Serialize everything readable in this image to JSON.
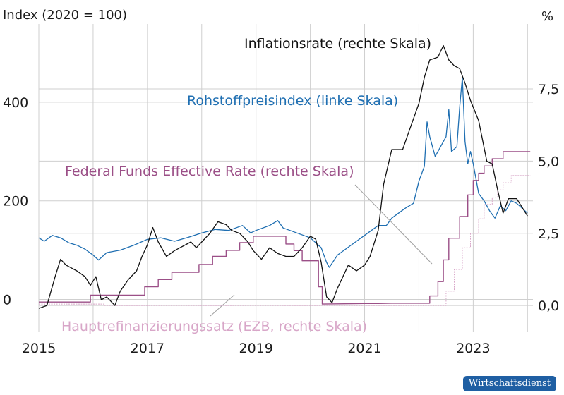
{
  "chart_data": {
    "type": "line",
    "left_axis_title": "Index (2020 = 100)",
    "right_axis_title": "%",
    "left_ylim": [
      -65,
      550
    ],
    "left_ticks": [
      "0",
      "200",
      "400"
    ],
    "right_ylim": [
      -0.9,
      9.6
    ],
    "right_ticks": [
      "0,0",
      "2,5",
      "5,0",
      "7,5"
    ],
    "xlim": [
      2015.0,
      2024.1
    ],
    "x_ticks": [
      "2015",
      "2017",
      "2019",
      "2021",
      "2023"
    ],
    "grid": "vertical yearly and horizontal gridlines",
    "colors": {
      "commodity": "#1f6fb2",
      "inflation": "#111111",
      "fedfunds": "#9b4f87",
      "ecb": "#d8a6c8",
      "grid": "#cfcfcf",
      "leader": "#a0a0a0"
    },
    "annotations": {
      "inflation": "Inflationsrate (rechte Skala)",
      "commodity": "Rohstoffpreisindex (linke Skala)",
      "fedfunds": "Federal Funds Effective Rate (rechte Skala)",
      "ecb": "Hauptrefinanzierungssatz (EZB, rechte Skala)"
    },
    "series": [
      {
        "id": "commodity",
        "axis": "left",
        "points": [
          [
            2015.0,
            125
          ],
          [
            2015.1,
            118
          ],
          [
            2015.25,
            130
          ],
          [
            2015.4,
            125
          ],
          [
            2015.55,
            115
          ],
          [
            2015.7,
            110
          ],
          [
            2015.85,
            102
          ],
          [
            2016.0,
            90
          ],
          [
            2016.1,
            80
          ],
          [
            2016.25,
            95
          ],
          [
            2016.5,
            100
          ],
          [
            2016.75,
            110
          ],
          [
            2017.0,
            122
          ],
          [
            2017.25,
            125
          ],
          [
            2017.5,
            118
          ],
          [
            2017.75,
            126
          ],
          [
            2018.0,
            135
          ],
          [
            2018.25,
            142
          ],
          [
            2018.5,
            140
          ],
          [
            2018.75,
            150
          ],
          [
            2018.9,
            135
          ],
          [
            2019.0,
            140
          ],
          [
            2019.25,
            150
          ],
          [
            2019.4,
            160
          ],
          [
            2019.5,
            145
          ],
          [
            2019.75,
            135
          ],
          [
            2020.0,
            125
          ],
          [
            2020.1,
            115
          ],
          [
            2020.2,
            105
          ],
          [
            2020.3,
            75
          ],
          [
            2020.35,
            65
          ],
          [
            2020.5,
            90
          ],
          [
            2020.75,
            110
          ],
          [
            2021.0,
            130
          ],
          [
            2021.25,
            150
          ],
          [
            2021.4,
            150
          ],
          [
            2021.5,
            165
          ],
          [
            2021.75,
            185
          ],
          [
            2021.9,
            195
          ],
          [
            2022.0,
            240
          ],
          [
            2022.1,
            270
          ],
          [
            2022.15,
            360
          ],
          [
            2022.2,
            330
          ],
          [
            2022.3,
            290
          ],
          [
            2022.4,
            310
          ],
          [
            2022.5,
            330
          ],
          [
            2022.55,
            385
          ],
          [
            2022.6,
            300
          ],
          [
            2022.7,
            310
          ],
          [
            2022.75,
            390
          ],
          [
            2022.8,
            450
          ],
          [
            2022.85,
            320
          ],
          [
            2022.9,
            275
          ],
          [
            2022.95,
            300
          ],
          [
            2023.0,
            275
          ],
          [
            2023.1,
            215
          ],
          [
            2023.2,
            200
          ],
          [
            2023.3,
            180
          ],
          [
            2023.4,
            165
          ],
          [
            2023.5,
            190
          ],
          [
            2023.6,
            180
          ],
          [
            2023.7,
            200
          ],
          [
            2023.8,
            195
          ],
          [
            2023.9,
            185
          ],
          [
            2024.0,
            175
          ]
        ]
      },
      {
        "id": "inflation",
        "axis": "right",
        "points": [
          [
            2015.0,
            -0.1
          ],
          [
            2015.15,
            0.0
          ],
          [
            2015.3,
            1.0
          ],
          [
            2015.4,
            1.6
          ],
          [
            2015.5,
            1.4
          ],
          [
            2015.7,
            1.2
          ],
          [
            2015.85,
            1.0
          ],
          [
            2015.95,
            0.7
          ],
          [
            2016.05,
            1.0
          ],
          [
            2016.15,
            0.2
          ],
          [
            2016.25,
            0.3
          ],
          [
            2016.4,
            0.0
          ],
          [
            2016.5,
            0.5
          ],
          [
            2016.65,
            0.9
          ],
          [
            2016.8,
            1.2
          ],
          [
            2016.9,
            1.7
          ],
          [
            2017.0,
            2.1
          ],
          [
            2017.1,
            2.7
          ],
          [
            2017.2,
            2.2
          ],
          [
            2017.35,
            1.7
          ],
          [
            2017.5,
            1.9
          ],
          [
            2017.6,
            2.0
          ],
          [
            2017.8,
            2.2
          ],
          [
            2017.9,
            2.0
          ],
          [
            2018.0,
            2.2
          ],
          [
            2018.15,
            2.5
          ],
          [
            2018.3,
            2.9
          ],
          [
            2018.45,
            2.8
          ],
          [
            2018.55,
            2.6
          ],
          [
            2018.7,
            2.5
          ],
          [
            2018.85,
            2.2
          ],
          [
            2018.95,
            1.9
          ],
          [
            2019.1,
            1.6
          ],
          [
            2019.25,
            2.0
          ],
          [
            2019.4,
            1.8
          ],
          [
            2019.55,
            1.7
          ],
          [
            2019.7,
            1.7
          ],
          [
            2019.85,
            2.0
          ],
          [
            2020.0,
            2.4
          ],
          [
            2020.1,
            2.3
          ],
          [
            2020.2,
            1.5
          ],
          [
            2020.3,
            0.3
          ],
          [
            2020.4,
            0.1
          ],
          [
            2020.5,
            0.6
          ],
          [
            2020.6,
            1.0
          ],
          [
            2020.7,
            1.4
          ],
          [
            2020.85,
            1.2
          ],
          [
            2021.0,
            1.4
          ],
          [
            2021.1,
            1.7
          ],
          [
            2021.25,
            2.6
          ],
          [
            2021.35,
            4.2
          ],
          [
            2021.5,
            5.4
          ],
          [
            2021.7,
            5.4
          ],
          [
            2021.85,
            6.2
          ],
          [
            2022.0,
            7.0
          ],
          [
            2022.1,
            7.9
          ],
          [
            2022.2,
            8.5
          ],
          [
            2022.35,
            8.6
          ],
          [
            2022.45,
            9.0
          ],
          [
            2022.55,
            8.5
          ],
          [
            2022.65,
            8.3
          ],
          [
            2022.75,
            8.2
          ],
          [
            2022.85,
            7.7
          ],
          [
            2022.95,
            7.1
          ],
          [
            2023.1,
            6.4
          ],
          [
            2023.25,
            5.0
          ],
          [
            2023.35,
            4.9
          ],
          [
            2023.45,
            4.0
          ],
          [
            2023.55,
            3.2
          ],
          [
            2023.65,
            3.7
          ],
          [
            2023.8,
            3.7
          ],
          [
            2023.9,
            3.4
          ],
          [
            2024.0,
            3.1
          ]
        ]
      },
      {
        "id": "fedfunds",
        "axis": "right",
        "points": [
          [
            2015.0,
            0.12
          ],
          [
            2015.95,
            0.12
          ],
          [
            2015.95,
            0.36
          ],
          [
            2016.95,
            0.36
          ],
          [
            2016.95,
            0.65
          ],
          [
            2017.2,
            0.65
          ],
          [
            2017.2,
            0.9
          ],
          [
            2017.45,
            0.9
          ],
          [
            2017.45,
            1.15
          ],
          [
            2017.95,
            1.15
          ],
          [
            2017.95,
            1.42
          ],
          [
            2018.2,
            1.42
          ],
          [
            2018.2,
            1.7
          ],
          [
            2018.45,
            1.7
          ],
          [
            2018.45,
            1.91
          ],
          [
            2018.7,
            1.91
          ],
          [
            2018.7,
            2.18
          ],
          [
            2018.95,
            2.18
          ],
          [
            2018.95,
            2.4
          ],
          [
            2019.55,
            2.4
          ],
          [
            2019.55,
            2.13
          ],
          [
            2019.7,
            2.13
          ],
          [
            2019.7,
            1.9
          ],
          [
            2019.85,
            1.9
          ],
          [
            2019.85,
            1.55
          ],
          [
            2020.15,
            1.55
          ],
          [
            2020.15,
            0.65
          ],
          [
            2020.22,
            0.65
          ],
          [
            2020.22,
            0.05
          ],
          [
            2021.0,
            0.07
          ],
          [
            2021.25,
            0.07
          ],
          [
            2021.5,
            0.08
          ],
          [
            2022.2,
            0.08
          ],
          [
            2022.2,
            0.33
          ],
          [
            2022.35,
            0.33
          ],
          [
            2022.35,
            0.83
          ],
          [
            2022.45,
            0.83
          ],
          [
            2022.45,
            1.58
          ],
          [
            2022.55,
            1.58
          ],
          [
            2022.55,
            2.33
          ],
          [
            2022.75,
            2.33
          ],
          [
            2022.75,
            3.08
          ],
          [
            2022.9,
            3.08
          ],
          [
            2022.9,
            3.83
          ],
          [
            2023.0,
            3.83
          ],
          [
            2023.0,
            4.33
          ],
          [
            2023.1,
            4.33
          ],
          [
            2023.1,
            4.58
          ],
          [
            2023.2,
            4.58
          ],
          [
            2023.2,
            4.83
          ],
          [
            2023.35,
            4.83
          ],
          [
            2023.35,
            5.08
          ],
          [
            2023.55,
            5.08
          ],
          [
            2023.55,
            5.33
          ],
          [
            2024.05,
            5.33
          ]
        ]
      },
      {
        "id": "ecb",
        "axis": "right",
        "points": [
          [
            2015.0,
            0.05
          ],
          [
            2016.2,
            0.05
          ],
          [
            2016.2,
            0.0
          ],
          [
            2022.5,
            0.0
          ],
          [
            2022.5,
            0.5
          ],
          [
            2022.65,
            0.5
          ],
          [
            2022.65,
            1.25
          ],
          [
            2022.8,
            1.25
          ],
          [
            2022.8,
            2.0
          ],
          [
            2022.95,
            2.0
          ],
          [
            2022.95,
            2.5
          ],
          [
            2023.1,
            2.5
          ],
          [
            2023.1,
            3.0
          ],
          [
            2023.2,
            3.0
          ],
          [
            2023.2,
            3.5
          ],
          [
            2023.35,
            3.5
          ],
          [
            2023.35,
            3.75
          ],
          [
            2023.45,
            3.75
          ],
          [
            2023.45,
            4.0
          ],
          [
            2023.55,
            4.0
          ],
          [
            2023.55,
            4.25
          ],
          [
            2023.7,
            4.25
          ],
          [
            2023.7,
            4.5
          ],
          [
            2024.05,
            4.5
          ]
        ]
      }
    ]
  },
  "footer": {
    "badge": "Wirtschaftsdienst"
  }
}
